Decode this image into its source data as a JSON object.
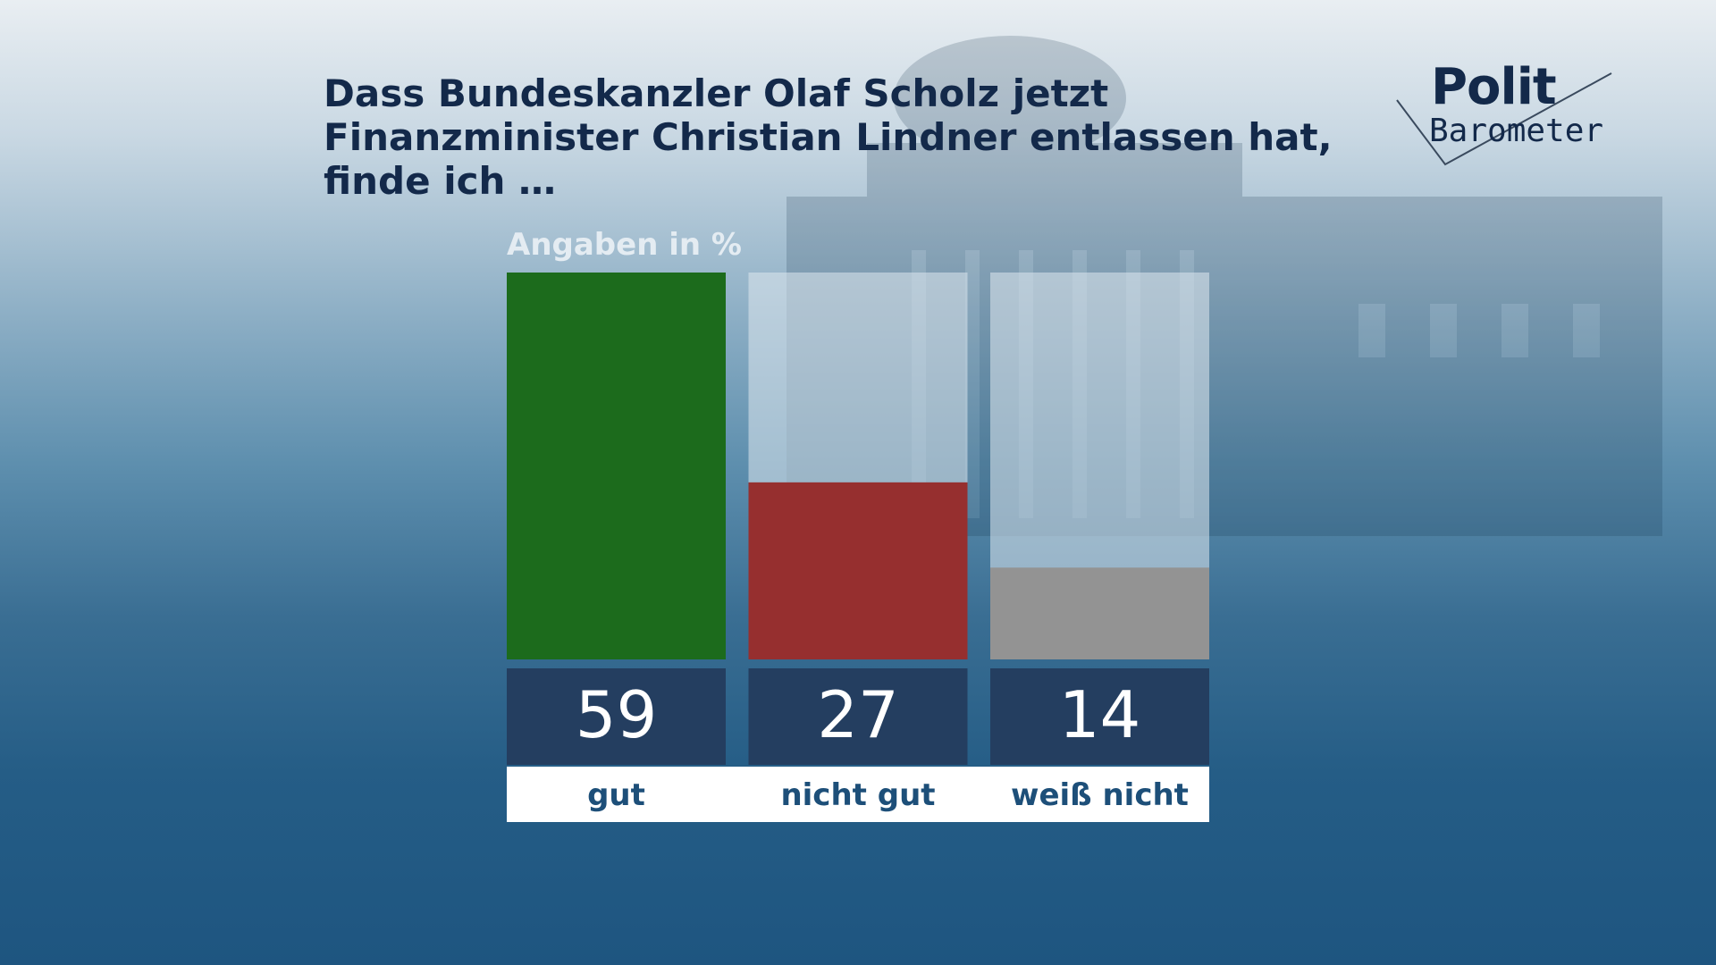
{
  "headline": "Dass Bundeskanzler Olaf Scholz jetzt Finanzminister Christian Lindner entlassen hat, finde ich …",
  "logo": {
    "line1": "Polit",
    "line2": "Barometer"
  },
  "colors": {
    "good": "#1c6b1c",
    "bad": "#962f2f",
    "dont_know": "#939393",
    "value_box": "#243e60",
    "value_text": "#ffffff",
    "category_text": "#1d4f79",
    "track": "#dfe8ee"
  },
  "chart_data": {
    "type": "bar",
    "unit_label": "Angaben in %",
    "categories": [
      "gut",
      "nicht gut",
      "weiß nicht"
    ],
    "values": [
      59,
      27,
      14
    ],
    "value_labels": [
      "59",
      "27",
      "14"
    ],
    "ylim": [
      0,
      59
    ]
  }
}
